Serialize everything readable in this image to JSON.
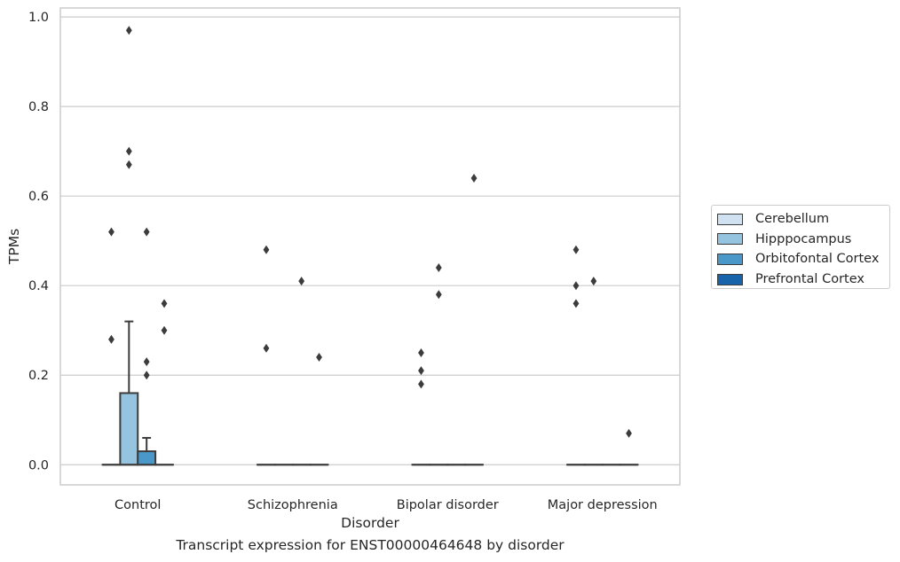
{
  "caption": "Transcript expression for ENST00000464648 by disorder",
  "colors": {
    "Cerebellum": "#d0e1f2",
    "Hipppocampus": "#94c4df",
    "Orbitofontal Cortex": "#4a98c9",
    "Prefrontal Cortex": "#1764ab",
    "grid": "#cccccc",
    "line": "#3c3c3c"
  },
  "chart_data": {
    "type": "box",
    "xlabel": "Disorder",
    "ylabel": "TPMs",
    "categories": [
      "Control",
      "Schizophrenia",
      "Bipolar disorder",
      "Major depression"
    ],
    "yticks": [
      "0.0",
      "0.2",
      "0.4",
      "0.6",
      "0.8",
      "1.0"
    ],
    "ylim": [
      -0.045,
      1.02
    ],
    "grid": true,
    "legend_position": "right",
    "series": [
      {
        "name": "Cerebellum",
        "boxes": [
          {
            "q1": 0,
            "median": 0,
            "q3": 0,
            "whisker_low": 0,
            "whisker_high": 0,
            "outliers": [
              0.28,
              0.52
            ]
          },
          {
            "q1": 0,
            "median": 0,
            "q3": 0,
            "whisker_low": 0,
            "whisker_high": 0,
            "outliers": [
              0.26,
              0.48
            ]
          },
          {
            "q1": 0,
            "median": 0,
            "q3": 0,
            "whisker_low": 0,
            "whisker_high": 0,
            "outliers": [
              0.18,
              0.21,
              0.25
            ]
          },
          {
            "q1": 0,
            "median": 0,
            "q3": 0,
            "whisker_low": 0,
            "whisker_high": 0,
            "outliers": [
              0.36,
              0.4,
              0.48
            ]
          }
        ]
      },
      {
        "name": "Hipppocampus",
        "boxes": [
          {
            "q1": 0,
            "median": 0,
            "q3": 0.16,
            "whisker_low": 0,
            "whisker_high": 0.32,
            "outliers": [
              0.67,
              0.7,
              0.97
            ]
          },
          {
            "q1": 0,
            "median": 0,
            "q3": 0,
            "whisker_low": 0,
            "whisker_high": 0,
            "outliers": []
          },
          {
            "q1": 0,
            "median": 0,
            "q3": 0,
            "whisker_low": 0,
            "whisker_high": 0,
            "outliers": [
              0.38,
              0.44
            ]
          },
          {
            "q1": 0,
            "median": 0,
            "q3": 0,
            "whisker_low": 0,
            "whisker_high": 0,
            "outliers": [
              0.41
            ]
          }
        ]
      },
      {
        "name": "Orbitofontal Cortex",
        "boxes": [
          {
            "q1": 0,
            "median": 0,
            "q3": 0.03,
            "whisker_low": 0,
            "whisker_high": 0.06,
            "outliers": [
              0.2,
              0.23,
              0.52
            ]
          },
          {
            "q1": 0,
            "median": 0,
            "q3": 0,
            "whisker_low": 0,
            "whisker_high": 0,
            "outliers": [
              0.41
            ]
          },
          {
            "q1": 0,
            "median": 0,
            "q3": 0,
            "whisker_low": 0,
            "whisker_high": 0,
            "outliers": []
          },
          {
            "q1": 0,
            "median": 0,
            "q3": 0,
            "whisker_low": 0,
            "whisker_high": 0,
            "outliers": []
          }
        ]
      },
      {
        "name": "Prefrontal Cortex",
        "boxes": [
          {
            "q1": 0,
            "median": 0,
            "q3": 0,
            "whisker_low": 0,
            "whisker_high": 0,
            "outliers": [
              0.3,
              0.36
            ]
          },
          {
            "q1": 0,
            "median": 0,
            "q3": 0,
            "whisker_low": 0,
            "whisker_high": 0,
            "outliers": [
              0.24
            ]
          },
          {
            "q1": 0,
            "median": 0,
            "q3": 0,
            "whisker_low": 0,
            "whisker_high": 0,
            "outliers": [
              0.64
            ]
          },
          {
            "q1": 0,
            "median": 0,
            "q3": 0,
            "whisker_low": 0,
            "whisker_high": 0,
            "outliers": [
              0.07
            ]
          }
        ]
      }
    ]
  }
}
